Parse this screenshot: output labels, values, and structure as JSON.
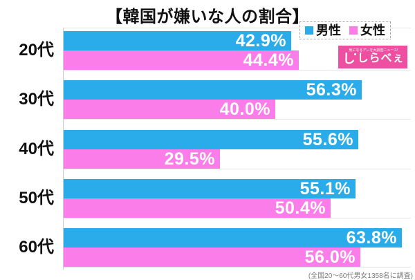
{
  "title": "【韓国が嫌いな人の割合】",
  "legend": {
    "items": [
      {
        "label": "男性",
        "color": "#29ACE9"
      },
      {
        "label": "女性",
        "color": "#FB7DE9"
      }
    ]
  },
  "logo": {
    "tagline": "気になるアレを大調査ニュース!",
    "icon": "し",
    "text": "しらべぇ",
    "bg_color": "#EF4FA0"
  },
  "footnote": "(全国20〜60代男女1358名に調査)",
  "colors": {
    "male_bar": "#29ACE9",
    "female_bar": "#FB7DE9",
    "value_text": "#ffffff",
    "axis": "#cccccc"
  },
  "chart_data": {
    "type": "bar",
    "orientation": "horizontal",
    "title": "【韓国が嫌いな人の割合】",
    "categories": [
      "20代",
      "30代",
      "40代",
      "50代",
      "60代"
    ],
    "series": [
      {
        "name": "男性",
        "color": "#29ACE9",
        "values": [
          42.9,
          56.3,
          55.6,
          55.1,
          63.8
        ]
      },
      {
        "name": "女性",
        "color": "#FB7DE9",
        "values": [
          44.4,
          40.0,
          29.5,
          50.4,
          56.0
        ]
      }
    ],
    "value_suffix": "%",
    "value_labels": "inside-end",
    "xlim": [
      0,
      65
    ],
    "grid": false,
    "legend_position": "top-right",
    "footnote": "(全国20〜60代男女1358名に調査)"
  }
}
